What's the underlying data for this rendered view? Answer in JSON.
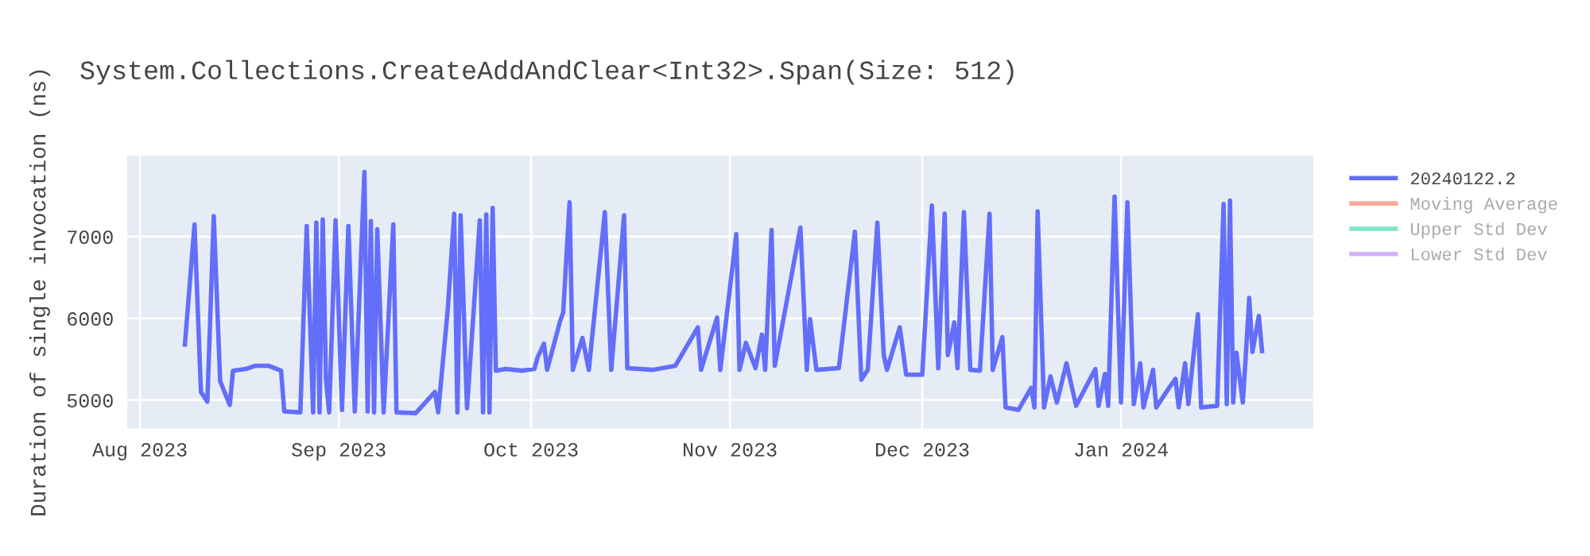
{
  "chart_data": {
    "type": "line",
    "title": "System.Collections.CreateAddAndClear<Int32>.Span(Size: 512)",
    "ylabel": "Duration of single invocation (ns)",
    "xlim": [
      "2023-07-30",
      "2024-01-31"
    ],
    "xticks": [
      {
        "value": "2023-08-01",
        "label": "Aug 2023"
      },
      {
        "value": "2023-09-01",
        "label": "Sep 2023"
      },
      {
        "value": "2023-10-01",
        "label": "Oct 2023"
      },
      {
        "value": "2023-11-01",
        "label": "Nov 2023"
      },
      {
        "value": "2023-12-01",
        "label": "Dec 2023"
      },
      {
        "value": "2024-01-01",
        "label": "Jan 2024"
      }
    ],
    "ylim": [
      4650,
      7990
    ],
    "yticks": [
      5000,
      6000,
      7000
    ],
    "grid": true,
    "legend": "top right",
    "marker": "none",
    "line_style": "solid",
    "series": [
      {
        "name": "20240122.2",
        "color": "#636efa",
        "x": [
          "2023-08-08",
          "2023-08-09T12:00",
          "2023-08-10T12:00",
          "2023-08-11T12:00",
          "2023-08-12T12:00",
          "2023-08-13T12:00",
          "2023-08-15",
          "2023-08-15T12:00",
          "2023-08-17T12:00",
          "2023-08-19",
          "2023-08-21",
          "2023-08-23",
          "2023-08-23T12:00",
          "2023-08-26",
          "2023-08-27",
          "2023-08-28",
          "2023-08-28T12:00",
          "2023-08-29",
          "2023-08-29T12:00",
          "2023-08-30",
          "2023-08-30T12:00",
          "2023-08-31T12:00",
          "2023-09-01T12:00",
          "2023-09-02T12:00",
          "2023-09-03T12:00",
          "2023-09-05",
          "2023-09-05T12:00",
          "2023-09-06",
          "2023-09-06T12:00",
          "2023-09-07",
          "2023-09-08",
          "2023-09-09T12:00",
          "2023-09-10",
          "2023-09-13",
          "2023-09-16",
          "2023-09-16T12:00",
          "2023-09-18",
          "2023-09-19",
          "2023-09-19T12:00",
          "2023-09-20",
          "2023-09-21",
          "2023-09-23",
          "2023-09-23T12:00",
          "2023-09-24",
          "2023-09-24T12:00",
          "2023-09-25",
          "2023-09-25T12:00",
          "2023-09-27",
          "2023-09-29T12:00",
          "2023-10-01T12:00",
          "2023-10-02",
          "2023-10-03",
          "2023-10-03T12:00",
          "2023-10-05T12:00",
          "2023-10-06",
          "2023-10-07",
          "2023-10-07T12:00",
          "2023-10-09",
          "2023-10-10",
          "2023-10-12T12:00",
          "2023-10-13T12:00",
          "2023-10-15T12:00",
          "2023-10-16",
          "2023-10-20",
          "2023-10-23T12:00",
          "2023-10-27",
          "2023-10-27T12:00",
          "2023-10-30",
          "2023-10-30T12:00",
          "2023-11-02",
          "2023-11-02T12:00",
          "2023-11-03T12:00",
          "2023-11-05",
          "2023-11-06",
          "2023-11-06T12:00",
          "2023-11-07T12:00",
          "2023-11-08",
          "2023-11-12",
          "2023-11-13",
          "2023-11-13T12:00",
          "2023-11-14T12:00",
          "2023-11-18",
          "2023-11-20T12:00",
          "2023-11-21T12:00",
          "2023-11-22T12:00",
          "2023-11-24",
          "2023-11-25",
          "2023-11-25T12:00",
          "2023-11-27T12:00",
          "2023-11-28T12:00",
          "2023-12-01",
          "2023-12-02T12:00",
          "2023-12-03T12:00",
          "2023-12-04T12:00",
          "2023-12-05",
          "2023-12-06",
          "2023-12-06T12:00",
          "2023-12-07T12:00",
          "2023-12-08T12:00",
          "2023-12-10",
          "2023-12-11T12:00",
          "2023-12-12",
          "2023-12-13T12:00",
          "2023-12-14",
          "2023-12-16",
          "2023-12-18",
          "2023-12-18T12:00",
          "2023-12-19",
          "2023-12-20",
          "2023-12-21",
          "2023-12-22",
          "2023-12-23T12:00",
          "2023-12-25",
          "2023-12-28",
          "2023-12-28T12:00",
          "2023-12-29T12:00",
          "2023-12-30",
          "2023-12-31",
          "2024-01-01",
          "2024-01-02",
          "2024-01-03",
          "2024-01-04",
          "2024-01-04T12:00",
          "2024-01-06",
          "2024-01-06T12:00",
          "2024-01-08T12:00",
          "2024-01-09T12:00",
          "2024-01-10",
          "2024-01-11",
          "2024-01-11T12:00",
          "2024-01-13",
          "2024-01-13T12:00",
          "2024-01-16",
          "2024-01-17",
          "2024-01-17T12:00",
          "2024-01-18",
          "2024-01-18T12:00",
          "2024-01-19",
          "2024-01-20",
          "2024-01-20T12:00",
          "2024-01-21",
          "2024-01-21T12:00",
          "2024-01-22T12:00",
          "2024-01-23"
        ],
        "values": [
          5680,
          7150,
          5100,
          4980,
          7250,
          5230,
          4940,
          5360,
          5380,
          5420,
          5420,
          5360,
          4860,
          4850,
          7130,
          4850,
          7170,
          4850,
          7210,
          5260,
          4850,
          7200,
          4880,
          7130,
          4860,
          7790,
          4860,
          7190,
          4850,
          7090,
          4850,
          7150,
          4850,
          4840,
          5100,
          4850,
          6110,
          7280,
          4850,
          7260,
          4900,
          7200,
          4850,
          7270,
          4850,
          7350,
          5360,
          5380,
          5360,
          5380,
          5520,
          5690,
          5370,
          5960,
          6070,
          7420,
          5370,
          5760,
          5370,
          7300,
          5370,
          7260,
          5390,
          5370,
          5420,
          5890,
          5370,
          6010,
          5370,
          7030,
          5370,
          5700,
          5390,
          5800,
          5370,
          7080,
          5420,
          7110,
          5370,
          5990,
          5370,
          5390,
          7060,
          5250,
          5370,
          7170,
          5550,
          5370,
          5890,
          5310,
          5310,
          7380,
          5390,
          7280,
          5550,
          5950,
          5390,
          7300,
          5370,
          5360,
          7280,
          5370,
          5770,
          4910,
          4880,
          5150,
          4910,
          7310,
          4910,
          5290,
          4970,
          5450,
          4930,
          5380,
          4930,
          5320,
          4930,
          7490,
          4970,
          7420,
          4950,
          5450,
          4910,
          5370,
          4910,
          5150,
          5260,
          4910,
          5450,
          4950,
          6050,
          4910,
          4930,
          7400,
          4950,
          7440,
          4970,
          5580,
          4970,
          5590,
          6250,
          5590,
          6030,
          5600
        ]
      },
      {
        "name": "Moving Average",
        "color": "#ef553b"
      },
      {
        "name": "Upper Std Dev",
        "color": "#00cc96"
      },
      {
        "name": "Lower Std Dev",
        "color": "#ab63fa"
      }
    ]
  }
}
